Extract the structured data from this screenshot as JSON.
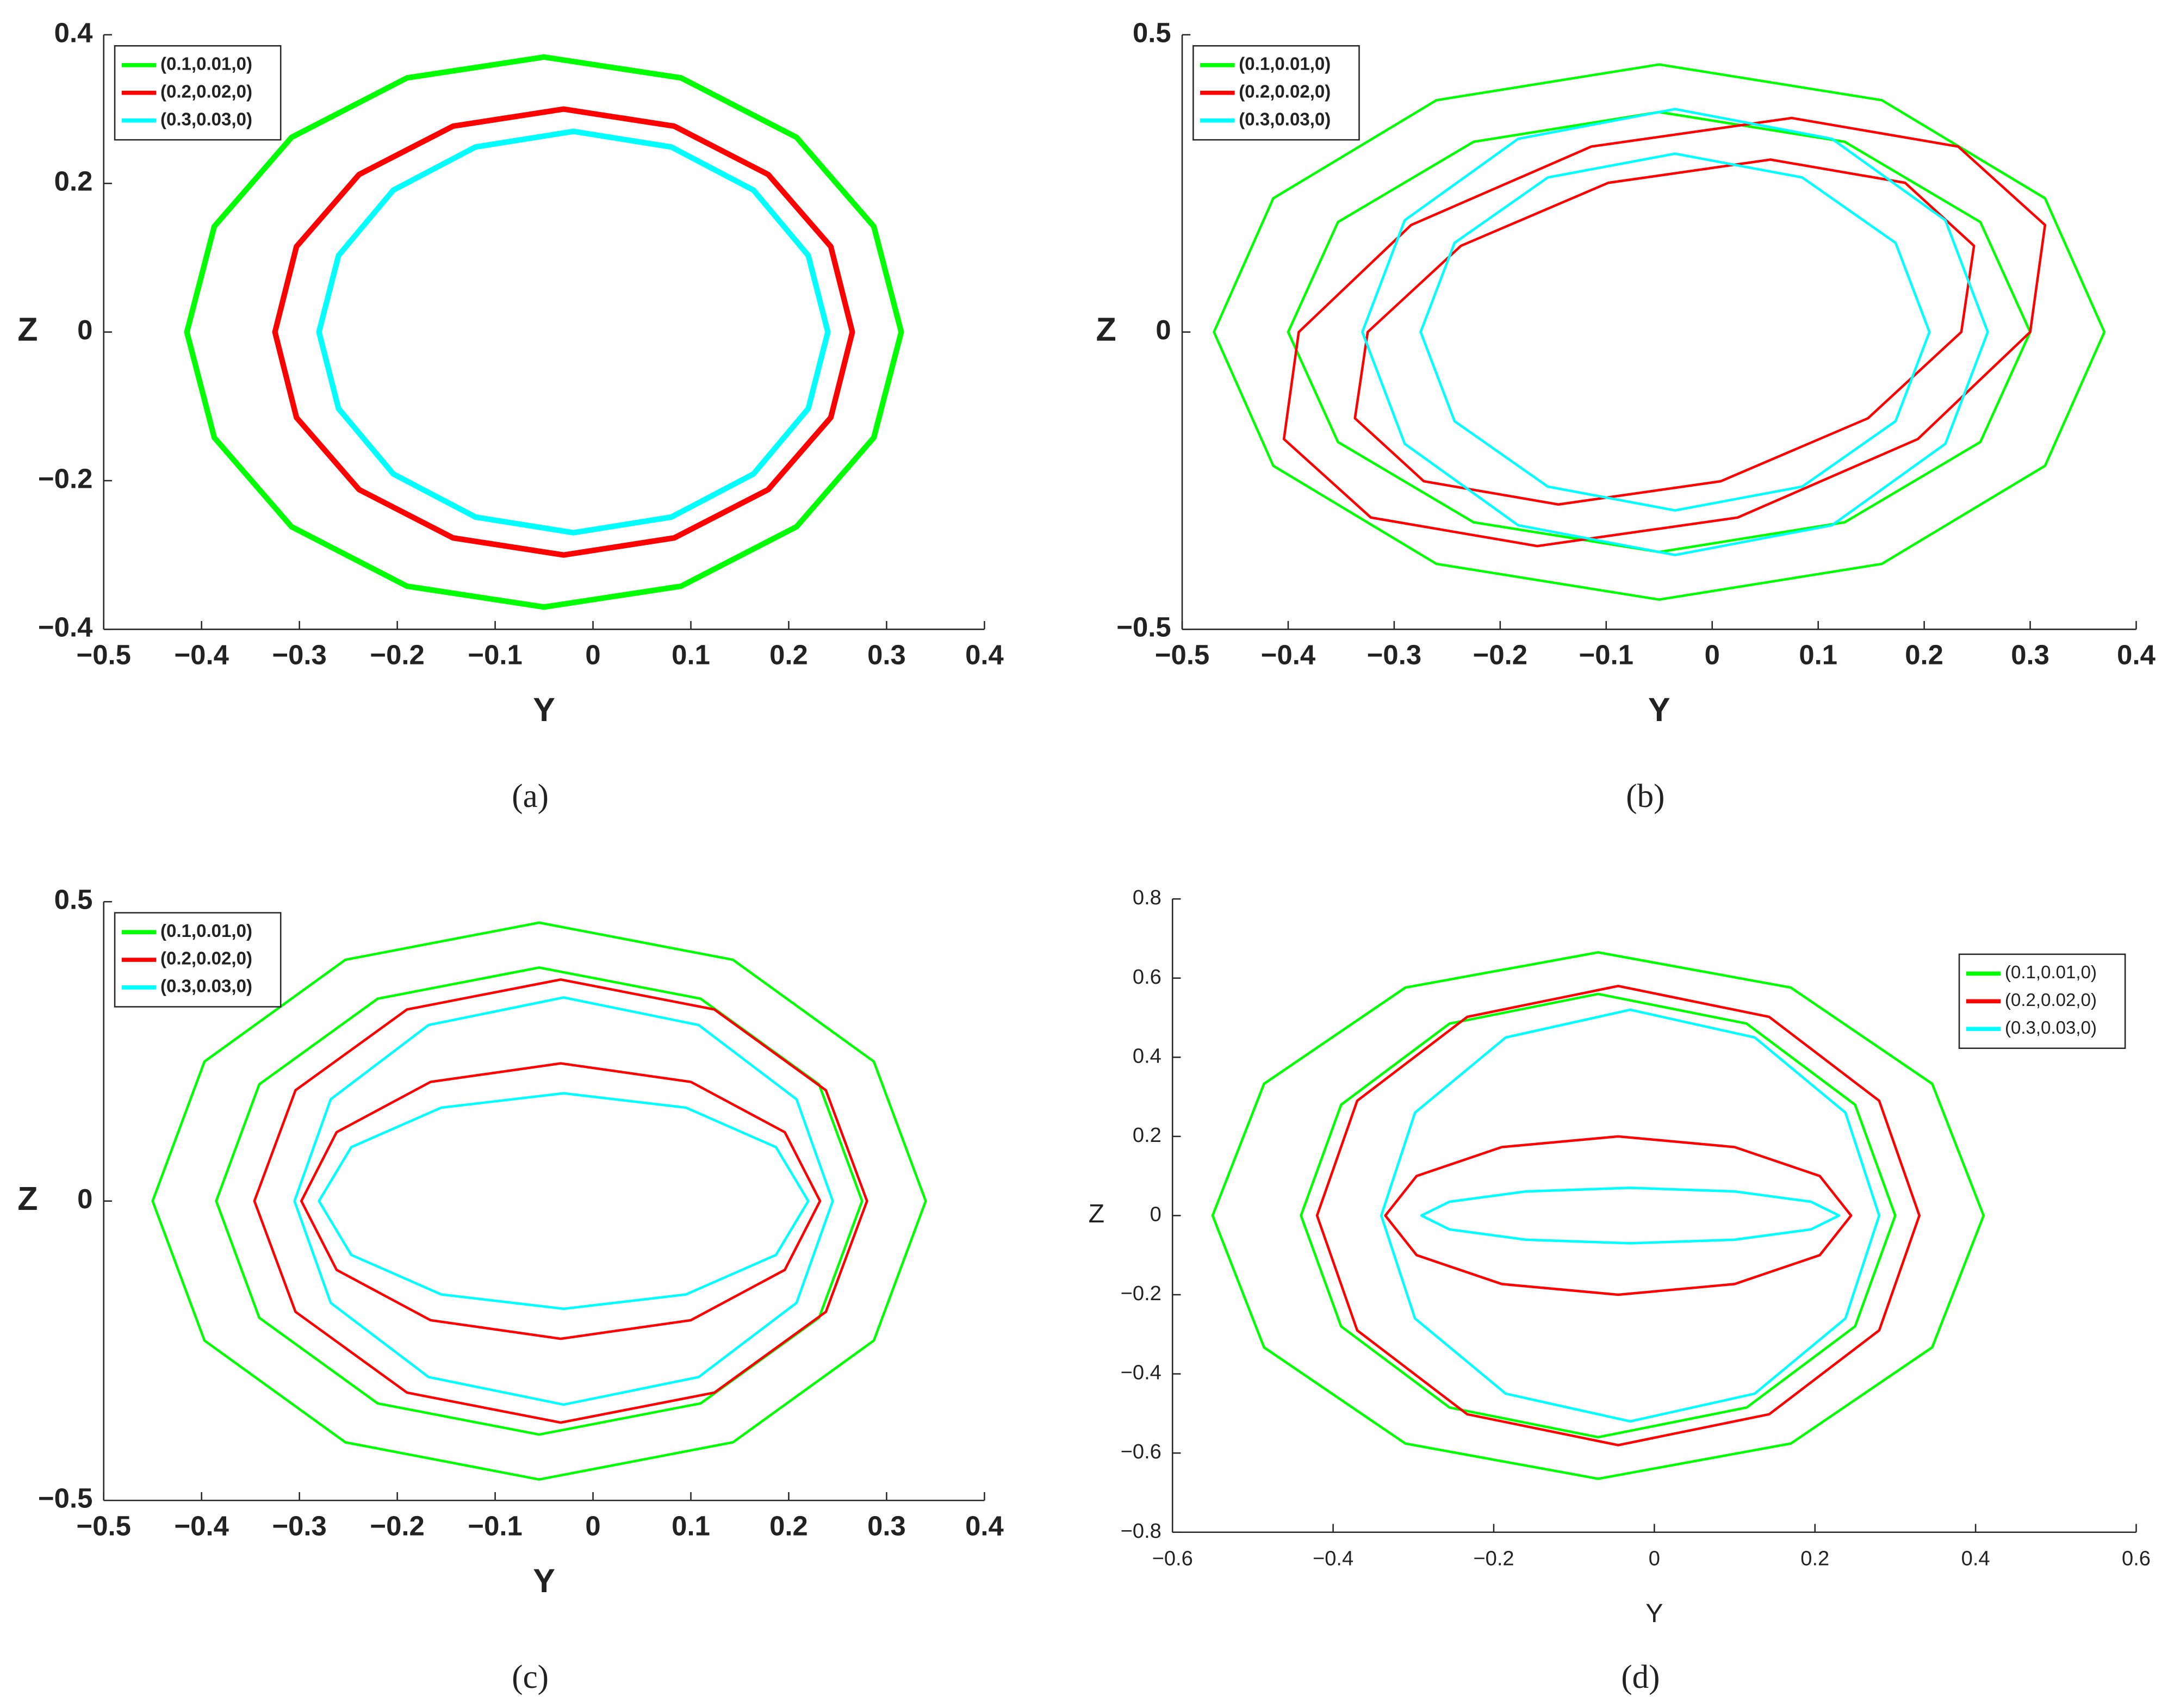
{
  "chart_data": [
    {
      "type": "line",
      "caption": "(a)",
      "xlabel": "Y",
      "ylabel": "Z",
      "legend": "upper left",
      "xlim": [
        -0.5,
        0.4
      ],
      "ylim": [
        -0.4,
        0.4
      ],
      "xticks": [
        {
          "value": -0.5,
          "label": "−0.5"
        },
        {
          "value": -0.4,
          "label": "−0.4"
        },
        {
          "value": -0.3,
          "label": "−0.3"
        },
        {
          "value": -0.2,
          "label": "−0.2"
        },
        {
          "value": -0.1,
          "label": "−0.1"
        },
        0,
        0.1,
        0.2,
        0.3,
        0.4
      ],
      "yticks": [
        {
          "value": -0.4,
          "label": "−0.4"
        },
        {
          "value": -0.2,
          "label": "−0.2"
        },
        0,
        0.2,
        0.4
      ],
      "series": [
        {
          "name": "(0.1,0.01,0)",
          "color": "#00ff00",
          "x": [
            0.315,
            0.287,
            0.208,
            0.09,
            -0.05,
            -0.19,
            -0.308,
            -0.387,
            -0.415,
            -0.387,
            -0.308,
            -0.19,
            -0.05,
            0.09,
            0.208,
            0.287
          ],
          "y": [
            0,
            0.142,
            0.262,
            0.342,
            0.37,
            0.342,
            0.262,
            0.142,
            0,
            -0.142,
            -0.262,
            -0.342,
            -0.37,
            -0.342,
            -0.262,
            -0.142
          ]
        },
        {
          "name": "(0.2,0.02,0)",
          "color": "#ff0000",
          "x": [
            0.265,
            0.243,
            0.179,
            0.083,
            -0.03,
            -0.143,
            -0.239,
            -0.303,
            -0.325,
            -0.303,
            -0.239,
            -0.143,
            -0.03,
            0.083,
            0.179,
            0.243
          ],
          "y": [
            0,
            0.115,
            0.212,
            0.277,
            0.3,
            0.277,
            0.212,
            0.115,
            0,
            -0.115,
            -0.212,
            -0.277,
            -0.3,
            -0.277,
            -0.212,
            -0.115
          ]
        },
        {
          "name": "(0.3,0.03,0)",
          "color": "#00ffff",
          "x": [
            0.24,
            0.22,
            0.164,
            0.08,
            -0.02,
            -0.12,
            -0.204,
            -0.26,
            -0.28,
            -0.26,
            -0.204,
            -0.12,
            -0.02,
            0.08,
            0.164,
            0.22
          ],
          "y": [
            0,
            0.103,
            0.191,
            0.249,
            0.27,
            0.249,
            0.191,
            0.103,
            0,
            -0.103,
            -0.191,
            -0.249,
            -0.27,
            -0.249,
            -0.191,
            -0.103
          ]
        }
      ]
    },
    {
      "type": "line",
      "caption": "(b)",
      "xlabel": "Y",
      "ylabel": "Z",
      "legend": "upper left",
      "xlim": [
        -0.5,
        0.4
      ],
      "ylim": [
        -0.5,
        0.5
      ],
      "xticks": [
        {
          "value": -0.5,
          "label": "−0.5"
        },
        {
          "value": -0.4,
          "label": "−0.4"
        },
        {
          "value": -0.3,
          "label": "−0.3"
        },
        {
          "value": -0.2,
          "label": "−0.2"
        },
        {
          "value": -0.1,
          "label": "−0.1"
        },
        0,
        0.1,
        0.2,
        0.3,
        0.4
      ],
      "yticks": [
        {
          "value": -0.5,
          "label": "−0.5"
        },
        0,
        0.5
      ],
      "series": [
        {
          "name": "(0.1,0.01,0)",
          "color": "#00ff00",
          "x": [
            0.37,
            0.314,
            0.16,
            -0.05,
            -0.26,
            -0.414,
            -0.47,
            -0.414,
            -0.26,
            -0.05,
            0.16,
            0.314,
            null,
            0.3,
            0.253,
            0.125,
            -0.05,
            -0.225,
            -0.353,
            -0.4,
            -0.353,
            -0.225,
            -0.05,
            0.125,
            0.253
          ],
          "y": [
            0,
            0.225,
            0.39,
            0.45,
            0.39,
            0.225,
            0,
            -0.225,
            -0.39,
            -0.45,
            -0.39,
            -0.225,
            null,
            0,
            0.185,
            0.32,
            0.37,
            0.32,
            0.185,
            0,
            -0.185,
            -0.32,
            -0.37,
            -0.32,
            -0.185
          ]
        },
        {
          "name": "(0.2,0.02,0)",
          "color": "#ff0000",
          "x": [
            0.3,
            0.314,
            0.232,
            0.075,
            -0.114,
            -0.284,
            -0.39,
            -0.404,
            -0.322,
            -0.165,
            0.024,
            0.194,
            null,
            0.235,
            0.247,
            0.182,
            0.055,
            -0.098,
            -0.237,
            -0.325,
            -0.337,
            -0.272,
            -0.145,
            0.008,
            0.147
          ],
          "y": [
            0,
            0.18,
            0.312,
            0.36,
            0.312,
            0.18,
            0,
            -0.18,
            -0.312,
            -0.36,
            -0.312,
            -0.18,
            null,
            0,
            0.145,
            0.251,
            0.29,
            0.251,
            0.145,
            0,
            -0.145,
            -0.251,
            -0.29,
            -0.251,
            -0.145
          ]
        },
        {
          "name": "(0.3,0.03,0)",
          "color": "#00ffff",
          "x": [
            0.26,
            0.22,
            0.113,
            -0.035,
            -0.183,
            -0.29,
            -0.33,
            -0.29,
            -0.183,
            -0.035,
            0.113,
            0.22,
            null,
            0.205,
            0.173,
            0.085,
            -0.035,
            -0.155,
            -0.243,
            -0.275,
            -0.243,
            -0.155,
            -0.035,
            0.085,
            0.173
          ],
          "y": [
            0,
            0.188,
            0.325,
            0.375,
            0.325,
            0.188,
            0,
            -0.188,
            -0.325,
            -0.375,
            -0.325,
            -0.188,
            null,
            0,
            0.15,
            0.26,
            0.3,
            0.26,
            0.15,
            0,
            -0.15,
            -0.26,
            -0.3,
            -0.26,
            -0.15
          ]
        }
      ]
    },
    {
      "type": "line",
      "caption": "(c)",
      "xlabel": "Y",
      "ylabel": "Z",
      "legend": "upper left",
      "xlim": [
        -0.5,
        0.4
      ],
      "ylim": [
        -0.5,
        0.5
      ],
      "xticks": [
        {
          "value": -0.5,
          "label": "−0.5"
        },
        {
          "value": -0.4,
          "label": "−0.4"
        },
        {
          "value": -0.3,
          "label": "−0.3"
        },
        {
          "value": -0.2,
          "label": "−0.2"
        },
        {
          "value": -0.1,
          "label": "−0.1"
        },
        0,
        0.1,
        0.2,
        0.3,
        0.4
      ],
      "yticks": [
        {
          "value": -0.5,
          "label": "−0.5"
        },
        0,
        0.5
      ],
      "series": [
        {
          "name": "(0.1,0.01,0)",
          "color": "#00ff00",
          "x": [
            0.34,
            0.287,
            0.143,
            -0.055,
            -0.253,
            -0.397,
            -0.45,
            -0.397,
            -0.253,
            -0.055,
            0.143,
            0.287,
            null,
            0.275,
            0.231,
            0.11,
            -0.055,
            -0.22,
            -0.341,
            -0.385,
            -0.341,
            -0.22,
            -0.055,
            0.11,
            0.231
          ],
          "y": [
            0,
            0.233,
            0.403,
            0.465,
            0.403,
            0.233,
            0,
            -0.233,
            -0.403,
            -0.465,
            -0.403,
            -0.233,
            null,
            0,
            0.195,
            0.338,
            0.39,
            0.338,
            0.195,
            0,
            -0.195,
            -0.338,
            -0.39,
            -0.338,
            -0.195
          ]
        },
        {
          "name": "(0.2,0.02,0)",
          "color": "#ff0000",
          "x": [
            0.28,
            0.238,
            0.124,
            -0.033,
            -0.19,
            -0.304,
            -0.346,
            -0.304,
            -0.19,
            -0.033,
            0.124,
            0.238,
            null,
            0.232,
            0.196,
            0.1,
            -0.033,
            -0.166,
            -0.262,
            -0.298,
            -0.262,
            -0.166,
            -0.033,
            0.1,
            0.196
          ],
          "y": [
            0,
            0.185,
            0.32,
            0.37,
            0.32,
            0.185,
            0,
            -0.185,
            -0.32,
            -0.37,
            -0.32,
            -0.185,
            null,
            0,
            0.115,
            0.199,
            0.23,
            0.199,
            0.115,
            0,
            -0.115,
            -0.199,
            -0.23,
            -0.199,
            -0.115
          ]
        },
        {
          "name": "(0.3,0.03,0)",
          "color": "#00ffff",
          "x": [
            0.245,
            0.208,
            0.108,
            -0.03,
            -0.168,
            -0.268,
            -0.305,
            -0.268,
            -0.168,
            -0.03,
            0.108,
            0.208,
            null,
            0.22,
            0.187,
            0.095,
            -0.03,
            -0.155,
            -0.247,
            -0.28,
            -0.247,
            -0.155,
            -0.03,
            0.095,
            0.187
          ],
          "y": [
            0,
            0.17,
            0.294,
            0.34,
            0.294,
            0.17,
            0,
            -0.17,
            -0.294,
            -0.34,
            -0.294,
            -0.17,
            null,
            0,
            0.09,
            0.156,
            0.18,
            0.156,
            0.09,
            0,
            -0.09,
            -0.156,
            -0.18,
            -0.156,
            -0.09
          ]
        }
      ]
    },
    {
      "type": "line",
      "caption": "(d)",
      "xlabel": "Y",
      "ylabel": "Z",
      "legend": "upper right",
      "xlim": [
        -0.6,
        0.6
      ],
      "ylim": [
        -0.8,
        0.8
      ],
      "xticks": [
        {
          "value": -0.6,
          "label": "−0.6"
        },
        {
          "value": -0.4,
          "label": "−0.4"
        },
        {
          "value": -0.2,
          "label": "−0.2"
        },
        0,
        0.2,
        0.4,
        0.6
      ],
      "yticks": [
        {
          "value": -0.8,
          "label": "−0.8"
        },
        {
          "value": -0.6,
          "label": "−0.6"
        },
        {
          "value": -0.4,
          "label": "−0.4"
        },
        {
          "value": -0.2,
          "label": "−0.2"
        },
        0,
        0.2,
        0.4,
        0.6,
        0.8
      ],
      "series": [
        {
          "name": "(0.1,0.01,0)",
          "color": "#00ff00",
          "x": [
            0.41,
            0.346,
            0.17,
            -0.07,
            -0.31,
            -0.486,
            -0.55,
            -0.486,
            -0.31,
            -0.07,
            0.17,
            0.346,
            null,
            0.3,
            0.25,
            0.115,
            -0.07,
            -0.255,
            -0.39,
            -0.44,
            -0.39,
            -0.255,
            -0.07,
            0.115,
            0.25
          ],
          "y": [
            0,
            0.333,
            0.576,
            0.665,
            0.576,
            0.333,
            0,
            -0.333,
            -0.576,
            -0.665,
            -0.576,
            -0.333,
            null,
            0,
            0.28,
            0.485,
            0.56,
            0.485,
            0.28,
            0,
            -0.28,
            -0.485,
            -0.56,
            -0.485,
            -0.28
          ]
        },
        {
          "name": "(0.2,0.02,0)",
          "color": "#ff0000",
          "x": [
            0.33,
            0.28,
            0.143,
            -0.045,
            -0.233,
            -0.37,
            -0.42,
            -0.37,
            -0.233,
            -0.045,
            0.143,
            0.28,
            null,
            0.245,
            0.206,
            0.1,
            -0.045,
            -0.19,
            -0.296,
            -0.335,
            -0.296,
            -0.19,
            -0.045,
            0.1,
            0.206
          ],
          "y": [
            0,
            0.29,
            0.502,
            0.58,
            0.502,
            0.29,
            0,
            -0.29,
            -0.502,
            -0.58,
            -0.502,
            -0.29,
            null,
            0,
            0.1,
            0.173,
            0.2,
            0.173,
            0.1,
            0,
            -0.1,
            -0.173,
            -0.2,
            -0.173,
            -0.1
          ]
        },
        {
          "name": "(0.3,0.03,0)",
          "color": "#00ffff",
          "x": [
            0.28,
            0.238,
            0.125,
            -0.03,
            -0.185,
            -0.298,
            -0.34,
            -0.298,
            -0.185,
            -0.03,
            0.125,
            0.238,
            null,
            0.23,
            0.195,
            0.1,
            -0.03,
            -0.16,
            -0.255,
            -0.29,
            -0.255,
            -0.16,
            -0.03,
            0.1,
            0.195
          ],
          "y": [
            0,
            0.26,
            0.45,
            0.52,
            0.45,
            0.26,
            0,
            -0.26,
            -0.45,
            -0.52,
            -0.45,
            -0.26,
            null,
            0,
            0.035,
            0.061,
            0.07,
            0.061,
            0.035,
            0,
            -0.035,
            -0.061,
            -0.07,
            -0.061,
            -0.035
          ]
        }
      ]
    }
  ]
}
